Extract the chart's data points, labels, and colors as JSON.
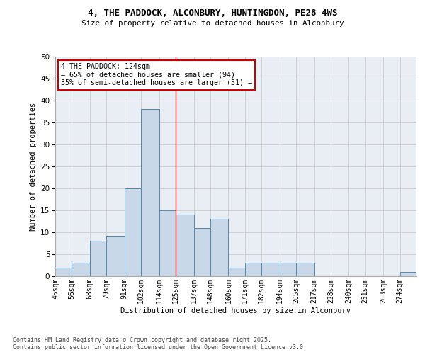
{
  "title": "4, THE PADDOCK, ALCONBURY, HUNTINGDON, PE28 4WS",
  "subtitle": "Size of property relative to detached houses in Alconbury",
  "xlabel": "Distribution of detached houses by size in Alconbury",
  "ylabel": "Number of detached properties",
  "footnote": "Contains HM Land Registry data © Crown copyright and database right 2025.\nContains public sector information licensed under the Open Government Licence v3.0.",
  "bar_color": "#c8d8e8",
  "bar_edge_color": "#5588aa",
  "grid_color": "#cccccc",
  "vline_x": 125,
  "vline_color": "#cc0000",
  "annotation_text": "4 THE PADDOCK: 124sqm\n← 65% of detached houses are smaller (94)\n35% of semi-detached houses are larger (51) →",
  "annotation_box_color": "#cc0000",
  "categories": [
    "45sqm",
    "56sqm",
    "68sqm",
    "79sqm",
    "91sqm",
    "102sqm",
    "114sqm",
    "125sqm",
    "137sqm",
    "148sqm",
    "160sqm",
    "171sqm",
    "182sqm",
    "194sqm",
    "205sqm",
    "217sqm",
    "228sqm",
    "240sqm",
    "251sqm",
    "263sqm",
    "274sqm"
  ],
  "bin_edges": [
    45,
    56,
    68,
    79,
    91,
    102,
    114,
    125,
    137,
    148,
    160,
    171,
    182,
    194,
    205,
    217,
    228,
    240,
    251,
    263,
    274,
    285
  ],
  "values": [
    2,
    3,
    8,
    9,
    20,
    38,
    15,
    14,
    11,
    13,
    2,
    3,
    3,
    3,
    3,
    0,
    0,
    0,
    0,
    0,
    1
  ],
  "ylim": [
    0,
    50
  ],
  "yticks": [
    0,
    5,
    10,
    15,
    20,
    25,
    30,
    35,
    40,
    45,
    50
  ],
  "background_color": "#e8eef4",
  "fig_background": "#ffffff"
}
